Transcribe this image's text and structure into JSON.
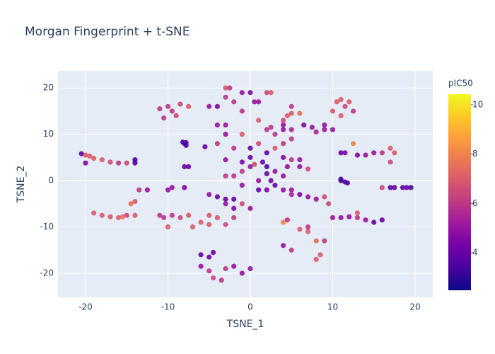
{
  "chart_data": {
    "type": "scatter",
    "title": "Morgan Fingerprint + t-SNE",
    "x_label": "TSNE_1",
    "y_label": "TSNE_2",
    "x": [
      -20.5,
      -20,
      -19.5,
      -19,
      -18,
      -17,
      -16,
      -15,
      -20,
      -14,
      -14,
      -19,
      -18,
      -17,
      -16,
      -15.5,
      -15,
      -14,
      -14.5,
      -14,
      -13.5,
      -12.5,
      -10,
      -9.5,
      -8,
      -11,
      -10,
      -9.5,
      -8.5,
      -7.5,
      -10.5,
      -9,
      -8.2,
      -8,
      -7.8,
      -7.8,
      -5.5,
      -7.5,
      -8,
      -9.5,
      -8.5,
      -7.5,
      -10,
      -7,
      -6,
      -5,
      -4,
      -5,
      -3,
      -2,
      -11,
      -10.5,
      -6,
      -5,
      -4.5,
      -6,
      -5,
      -4.5,
      -3.5,
      -3,
      -2,
      -1,
      0,
      -4,
      -3,
      -2,
      -3,
      -5,
      -2,
      0,
      -1,
      -4,
      -3,
      -3,
      -1,
      -4,
      -2,
      -5,
      -4,
      -3,
      -2.5,
      -3,
      -2,
      -1,
      0,
      0.5,
      1,
      2,
      2.5,
      -1,
      -3,
      -3,
      -2,
      -1,
      -1,
      0,
      0.5,
      -1,
      0,
      0,
      2,
      1.5,
      2,
      2,
      2.5,
      3,
      1,
      2,
      3,
      1,
      4,
      1,
      2,
      2.5,
      3,
      4,
      4,
      5,
      4,
      5,
      3,
      1,
      4.5,
      5,
      6,
      4,
      5,
      4.5,
      6,
      7,
      4,
      6,
      6.5,
      7.5,
      8,
      9,
      9,
      10,
      4,
      5,
      5,
      6,
      7,
      8,
      4,
      4.5,
      4,
      5,
      6,
      7,
      8,
      8.5,
      9,
      8,
      9.5,
      9,
      7,
      10.5,
      11,
      12,
      11.5,
      12.5,
      5,
      10,
      11,
      11,
      11.5,
      12.5,
      13,
      14,
      15,
      16,
      17,
      17.5,
      17,
      11,
      11.5,
      11,
      11.8,
      10,
      11,
      12,
      13,
      13,
      14,
      15,
      16,
      17,
      17.5,
      18.5,
      19,
      19.5,
      16
    ],
    "y": [
      5.8,
      5.5,
      5.3,
      4.8,
      4.5,
      4,
      3.8,
      3.8,
      3.8,
      4.5,
      3.8,
      -7,
      -7.5,
      -7.8,
      -8,
      -7.8,
      -7.5,
      -7.5,
      -5,
      -4.5,
      -2,
      -2,
      -2,
      -1.5,
      -1.5,
      15.5,
      16,
      15,
      16.5,
      16,
      13.5,
      14,
      8.3,
      8,
      7.6,
      8.2,
      7.3,
      3,
      3,
      -7.5,
      -8,
      -7.5,
      -10,
      -10,
      -9,
      -9.5,
      -8,
      -7.5,
      -9.5,
      -8,
      -7.5,
      -8,
      -16,
      -16.5,
      -15.5,
      -18.5,
      -19.5,
      -21,
      -21.5,
      -19,
      -18.5,
      -20,
      -19,
      -3.5,
      -4,
      -4,
      -5,
      -3,
      -6,
      -6,
      -5,
      12,
      12,
      10,
      10,
      8,
      7,
      16,
      16,
      20,
      20,
      18,
      17,
      19,
      19,
      17,
      17,
      19,
      19,
      15,
      4.5,
      1,
      1,
      2,
      4,
      3,
      3.5,
      -1,
      7,
      5,
      6,
      4,
      3,
      1.5,
      0,
      -1,
      -2,
      -2,
      2,
      0,
      1,
      13,
      11,
      11.5,
      10,
      11,
      12,
      11,
      8,
      9,
      7,
      8,
      14,
      14.5,
      14.5,
      13,
      4.5,
      3,
      3,
      2.5,
      5,
      4.5,
      12,
      11.5,
      10.5,
      11,
      12,
      11,
      -2,
      -2,
      -3,
      -3,
      -3.5,
      -4,
      -9,
      -8.5,
      -14,
      -15,
      -10.5,
      -11,
      -13,
      -16,
      -13,
      -17,
      -5,
      -3.5,
      -10,
      17,
      17.5,
      17,
      16,
      15,
      16,
      15,
      14,
      6,
      6,
      8,
      5.5,
      5.5,
      6,
      6,
      7,
      6,
      4,
      0,
      -0.3,
      0.3,
      -0.5,
      -8,
      -8,
      -7.8,
      -7,
      -8,
      -8.5,
      -9,
      -8.5,
      -1.5,
      -1.5,
      -1.5,
      -1.5,
      -1.5,
      -1.5
    ],
    "values": [
      4,
      7,
      7,
      7,
      7,
      6.5,
      6,
      6.5,
      4.5,
      3.5,
      3.5,
      7,
      7,
      7,
      7,
      7.5,
      6.5,
      7,
      7.5,
      7,
      6,
      5,
      5,
      5,
      4.5,
      6,
      6,
      6,
      6.5,
      7,
      6,
      6.5,
      3.5,
      3.5,
      3.5,
      3.5,
      4,
      4,
      4,
      6,
      6.5,
      7,
      7,
      7,
      7,
      7,
      7,
      7,
      6.5,
      6,
      6,
      6,
      4,
      4,
      4,
      5,
      6,
      6.5,
      6,
      6,
      5,
      5,
      5,
      4,
      4,
      4,
      5,
      5,
      4.5,
      5,
      6.5,
      5,
      5,
      5,
      7,
      6,
      6,
      5,
      4.5,
      7,
      6,
      6,
      6,
      5,
      4.5,
      5,
      5,
      6.5,
      7,
      6,
      5,
      6,
      6,
      6,
      4.5,
      5,
      6.5,
      5,
      4,
      4,
      4,
      4,
      3.5,
      4,
      4,
      4,
      4,
      4.5,
      5,
      5,
      5,
      7,
      6,
      6,
      6,
      5,
      5,
      5.5,
      6,
      6,
      7,
      6.5,
      7,
      7,
      7.5,
      6.5,
      6,
      5,
      5,
      6.5,
      4.5,
      5,
      4.5,
      5,
      5.5,
      5,
      5,
      5,
      5,
      5,
      5.5,
      4.5,
      5,
      5,
      8,
      6,
      5,
      6,
      7,
      7,
      7.5,
      7,
      6,
      7,
      6.5,
      6.5,
      6,
      7,
      7,
      7,
      6.5,
      6,
      6,
      7,
      7,
      4,
      4.5,
      8,
      4.5,
      5,
      5,
      6,
      7,
      7,
      6.5,
      3.5,
      3.5,
      3.5,
      3.5,
      5,
      5,
      5,
      7,
      6,
      5,
      4,
      4,
      4,
      4,
      4,
      4,
      3.5,
      6.5
    ],
    "xlim": [
      -23.35,
      22.15
    ],
    "ylim": [
      -25.2,
      23.7
    ],
    "xticks": [
      -20,
      -10,
      0,
      10,
      20
    ],
    "yticks": [
      -20,
      -10,
      0,
      10,
      20
    ],
    "grid": true,
    "colorbar": {
      "title": "pIC50",
      "lim": [
        2.48,
        10.43
      ],
      "ticks": [
        4,
        6,
        8,
        10
      ]
    },
    "colorscale": [
      "#0d0887",
      "#46039f",
      "#7201a8",
      "#9c179e",
      "#bd3786",
      "#d8576b",
      "#ed7953",
      "#fb9f3a",
      "#fdca26",
      "#f0f921"
    ]
  }
}
